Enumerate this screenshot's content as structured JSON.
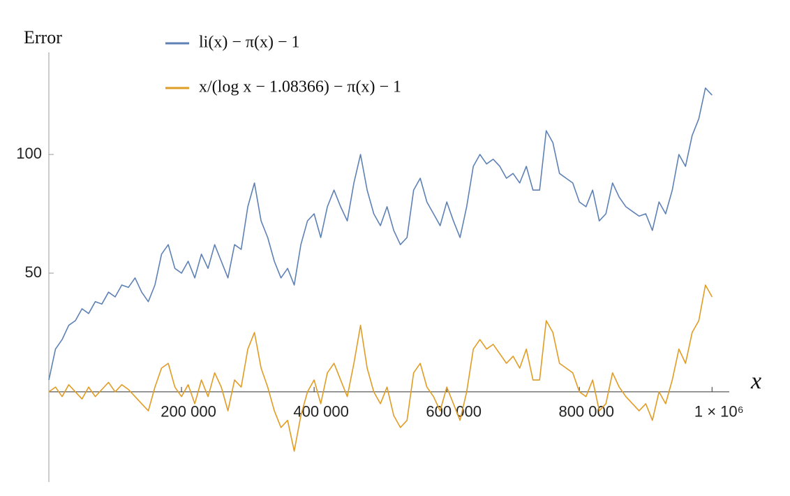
{
  "chart_data": {
    "type": "line",
    "xlabel": "x",
    "ylabel": "Error",
    "xlim": [
      0,
      1026000
    ],
    "ylim": [
      -38,
      143
    ],
    "xticks": [
      {
        "value": 200000,
        "label": "200 000"
      },
      {
        "value": 400000,
        "label": "400 000"
      },
      {
        "value": 600000,
        "label": "600 000"
      },
      {
        "value": 800000,
        "label": "800 000"
      },
      {
        "value": 1000000,
        "label": "1 × 10⁶"
      }
    ],
    "yticks": [
      50,
      100
    ],
    "x": [
      0,
      10000,
      20000,
      30000,
      40000,
      50000,
      60000,
      70000,
      80000,
      90000,
      100000,
      110000,
      120000,
      130000,
      140000,
      150000,
      160000,
      170000,
      180000,
      190000,
      200000,
      210000,
      220000,
      230000,
      240000,
      250000,
      260000,
      270000,
      280000,
      290000,
      300000,
      310000,
      320000,
      330000,
      340000,
      350000,
      360000,
      370000,
      380000,
      390000,
      400000,
      410000,
      420000,
      430000,
      440000,
      450000,
      460000,
      470000,
      480000,
      490000,
      500000,
      510000,
      520000,
      530000,
      540000,
      550000,
      560000,
      570000,
      580000,
      590000,
      600000,
      610000,
      620000,
      630000,
      640000,
      650000,
      660000,
      670000,
      680000,
      690000,
      700000,
      710000,
      720000,
      730000,
      740000,
      750000,
      760000,
      770000,
      780000,
      790000,
      800000,
      810000,
      820000,
      830000,
      840000,
      850000,
      860000,
      870000,
      880000,
      890000,
      900000,
      910000,
      920000,
      930000,
      940000,
      950000,
      960000,
      970000,
      980000,
      990000,
      1000000
    ],
    "series": [
      {
        "name": "li(x) − π(x) − 1",
        "color": "#5e81b5",
        "values": [
          5,
          18,
          22,
          28,
          30,
          35,
          33,
          38,
          37,
          42,
          40,
          45,
          44,
          48,
          42,
          38,
          45,
          58,
          62,
          52,
          50,
          55,
          48,
          58,
          52,
          62,
          55,
          48,
          62,
          60,
          78,
          88,
          72,
          65,
          55,
          48,
          52,
          45,
          62,
          72,
          75,
          65,
          78,
          85,
          78,
          72,
          88,
          100,
          85,
          75,
          70,
          78,
          68,
          62,
          65,
          85,
          90,
          80,
          75,
          70,
          80,
          72,
          65,
          78,
          95,
          100,
          96,
          98,
          95,
          90,
          92,
          88,
          95,
          85,
          85,
          110,
          105,
          92,
          90,
          88,
          80,
          78,
          85,
          72,
          75,
          88,
          82,
          78,
          76,
          74,
          75,
          68,
          80,
          75,
          85,
          100,
          95,
          108,
          115,
          128,
          125
        ]
      },
      {
        "name": "x/(log x − 1.08366) − π(x) − 1",
        "color": "#e19c24",
        "values": [
          0,
          2,
          -2,
          3,
          0,
          -3,
          2,
          -2,
          1,
          4,
          0,
          3,
          1,
          -2,
          -5,
          -8,
          2,
          10,
          12,
          2,
          -2,
          3,
          -5,
          5,
          -2,
          8,
          2,
          -8,
          5,
          2,
          18,
          25,
          10,
          2,
          -8,
          -15,
          -12,
          -25,
          -10,
          0,
          5,
          -5,
          8,
          12,
          5,
          -2,
          12,
          28,
          10,
          0,
          -5,
          2,
          -10,
          -15,
          -12,
          8,
          12,
          2,
          -2,
          -8,
          2,
          -5,
          -12,
          0,
          18,
          22,
          18,
          20,
          16,
          12,
          15,
          10,
          18,
          5,
          5,
          30,
          25,
          12,
          10,
          8,
          0,
          -2,
          5,
          -8,
          -5,
          8,
          2,
          -2,
          -5,
          -8,
          -5,
          -12,
          0,
          -5,
          5,
          18,
          12,
          25,
          30,
          45,
          40
        ]
      }
    ]
  }
}
